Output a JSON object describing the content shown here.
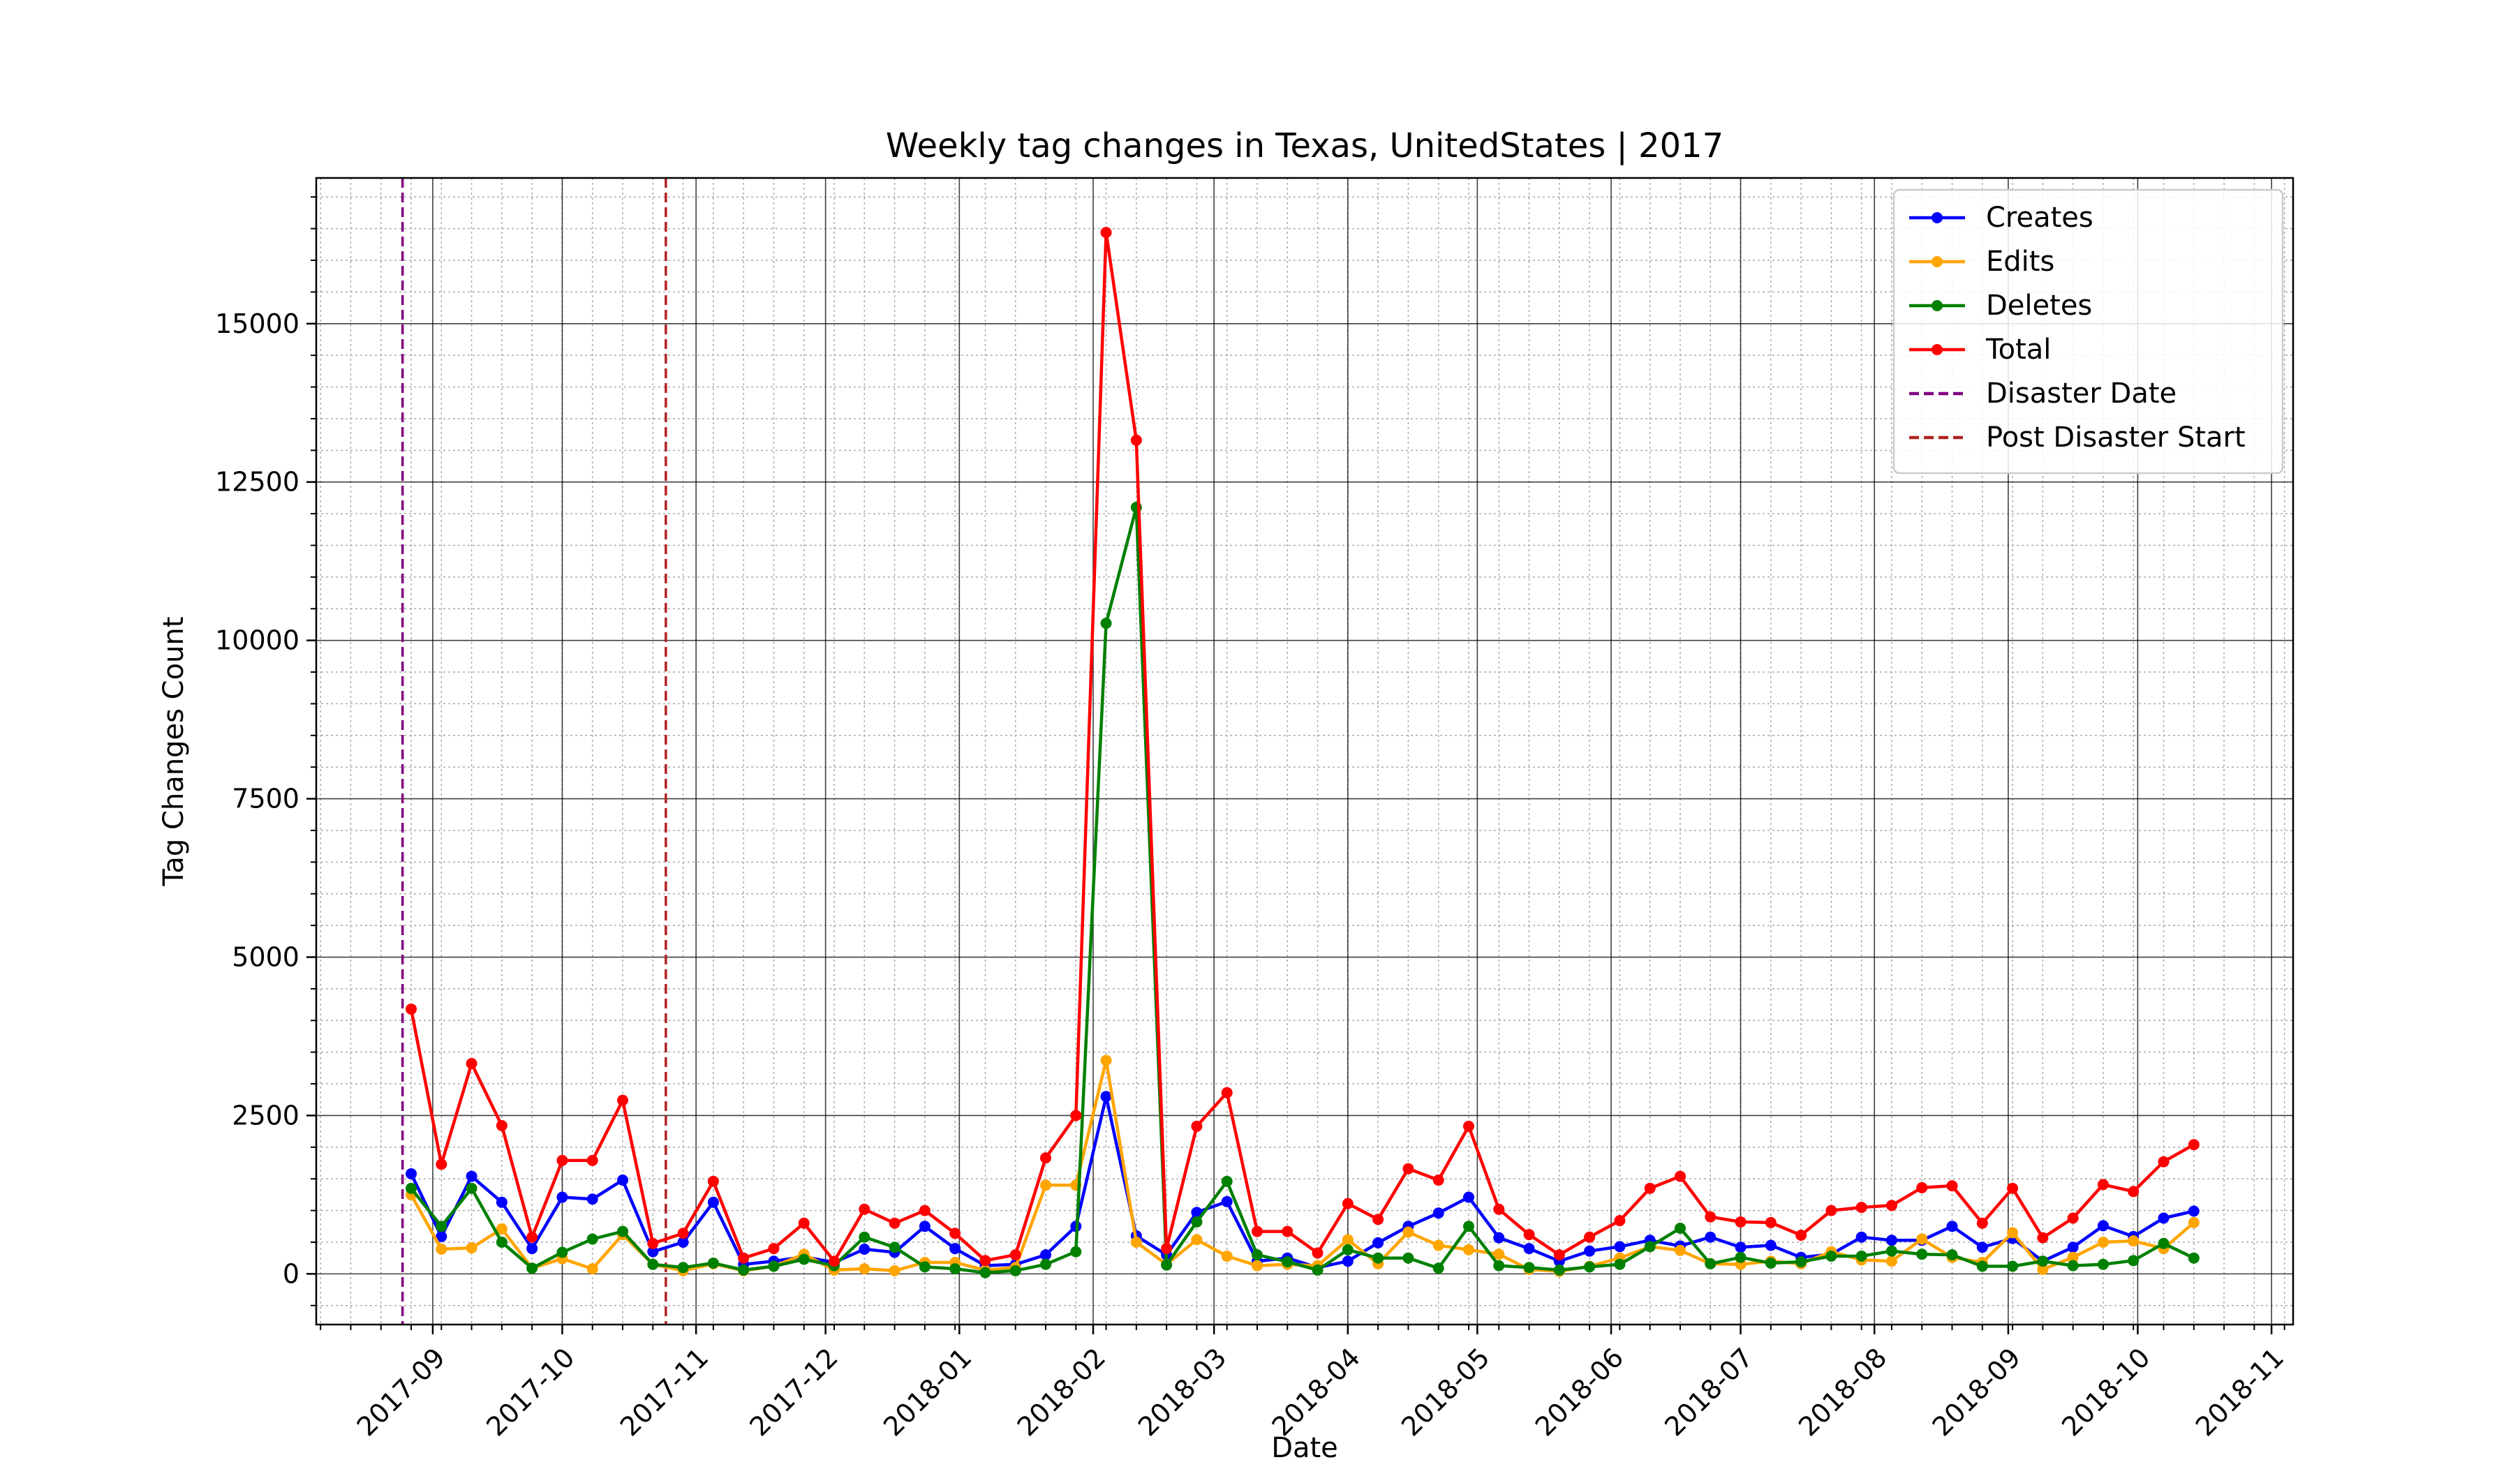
{
  "chart_data": {
    "type": "line",
    "title": "Weekly tag changes in Texas, UnitedStates | 2017",
    "xlabel": "Date",
    "ylabel": "Tag Changes Count",
    "xlim": [
      "2017-08-05",
      "2018-11-06"
    ],
    "ylim": [
      -800,
      17300
    ],
    "x_ticks": [
      "2017-09",
      "2017-10",
      "2017-11",
      "2017-12",
      "2018-01",
      "2018-02",
      "2018-03",
      "2018-04",
      "2018-05",
      "2018-06",
      "2018-07",
      "2018-08",
      "2018-09",
      "2018-10",
      "2018-11"
    ],
    "x_tick_dates": [
      "2017-09-01",
      "2017-10-01",
      "2017-11-01",
      "2017-12-01",
      "2018-01-01",
      "2018-02-01",
      "2018-03-01",
      "2018-04-01",
      "2018-05-01",
      "2018-06-01",
      "2018-07-01",
      "2018-08-01",
      "2018-09-01",
      "2018-10-01",
      "2018-11-01"
    ],
    "y_ticks": [
      0,
      2500,
      5000,
      7500,
      10000,
      12500,
      15000
    ],
    "y_tick_labels": [
      "0",
      "2500",
      "5000",
      "7500",
      "10000",
      "12500",
      "15000"
    ],
    "grid": true,
    "minor_grid": true,
    "legend_position": "top-right",
    "x": [
      "2017-08-27",
      "2017-09-03",
      "2017-09-10",
      "2017-09-17",
      "2017-09-24",
      "2017-10-01",
      "2017-10-08",
      "2017-10-15",
      "2017-10-22",
      "2017-10-29",
      "2017-11-05",
      "2017-11-12",
      "2017-11-19",
      "2017-11-26",
      "2017-12-03",
      "2017-12-10",
      "2017-12-17",
      "2017-12-24",
      "2017-12-31",
      "2018-01-07",
      "2018-01-14",
      "2018-01-21",
      "2018-01-28",
      "2018-02-04",
      "2018-02-11",
      "2018-02-18",
      "2018-02-25",
      "2018-03-04",
      "2018-03-11",
      "2018-03-18",
      "2018-03-25",
      "2018-04-01",
      "2018-04-08",
      "2018-04-15",
      "2018-04-22",
      "2018-04-29",
      "2018-05-06",
      "2018-05-13",
      "2018-05-20",
      "2018-05-27",
      "2018-06-03",
      "2018-06-10",
      "2018-06-17",
      "2018-06-24",
      "2018-07-01",
      "2018-07-08",
      "2018-07-15",
      "2018-07-22",
      "2018-07-29",
      "2018-08-05",
      "2018-08-12",
      "2018-08-19",
      "2018-08-26",
      "2018-09-02",
      "2018-09-09",
      "2018-09-16",
      "2018-09-23",
      "2018-09-30",
      "2018-10-07",
      "2018-10-14"
    ],
    "series": [
      {
        "name": "Creates",
        "color": "#0000ff",
        "values": [
          1580,
          590,
          1540,
          1130,
          400,
          1210,
          1180,
          1480,
          350,
          500,
          1130,
          150,
          200,
          270,
          180,
          390,
          340,
          750,
          400,
          130,
          150,
          300,
          750,
          2800,
          600,
          300,
          970,
          1140,
          200,
          250,
          100,
          200,
          490,
          750,
          960,
          1210,
          570,
          400,
          200,
          360,
          430,
          530,
          440,
          580,
          420,
          450,
          260,
          310,
          580,
          530,
          530,
          750,
          420,
          560,
          200,
          420,
          760,
          590,
          880,
          990
        ]
      },
      {
        "name": "Edits",
        "color": "#ffa500",
        "values": [
          1250,
          390,
          410,
          710,
          90,
          240,
          80,
          620,
          150,
          50,
          160,
          50,
          120,
          310,
          60,
          80,
          50,
          180,
          180,
          60,
          100,
          1400,
          1400,
          3370,
          500,
          150,
          540,
          280,
          130,
          150,
          130,
          540,
          160,
          660,
          450,
          380,
          310,
          70,
          40,
          120,
          250,
          430,
          370,
          160,
          150,
          200,
          160,
          350,
          220,
          200,
          550,
          260,
          180,
          650,
          70,
          260,
          500,
          520,
          400,
          810
        ]
      },
      {
        "name": "Deletes",
        "color": "#008000",
        "values": [
          1350,
          750,
          1350,
          500,
          90,
          340,
          550,
          670,
          150,
          100,
          170,
          60,
          120,
          230,
          130,
          580,
          420,
          110,
          80,
          20,
          50,
          150,
          350,
          10270,
          12100,
          140,
          820,
          1460,
          300,
          190,
          60,
          380,
          250,
          250,
          90,
          750,
          130,
          100,
          60,
          110,
          150,
          430,
          720,
          160,
          260,
          170,
          190,
          280,
          280,
          360,
          310,
          300,
          120,
          120,
          200,
          130,
          150,
          210,
          480,
          250
        ]
      },
      {
        "name": "Total",
        "color": "#ff0000",
        "values": [
          4180,
          1730,
          3320,
          2340,
          580,
          1790,
          1790,
          2740,
          480,
          640,
          1460,
          250,
          400,
          800,
          200,
          1020,
          800,
          1000,
          640,
          210,
          300,
          1830,
          2500,
          16440,
          13160,
          400,
          2330,
          2860,
          670,
          670,
          330,
          1110,
          860,
          1660,
          1480,
          2330,
          1020,
          620,
          300,
          580,
          840,
          1350,
          1540,
          900,
          820,
          810,
          610,
          1000,
          1050,
          1080,
          1360,
          1390,
          800,
          1350,
          570,
          880,
          1410,
          1300,
          1770,
          2040
        ]
      }
    ],
    "reference_lines": [
      {
        "name": "Disaster Date",
        "x": "2017-08-25",
        "color": "#800080",
        "style": "dashed"
      },
      {
        "name": "Post Disaster Start",
        "x": "2017-10-25",
        "color": "#b22222",
        "style": "dashed"
      }
    ]
  }
}
